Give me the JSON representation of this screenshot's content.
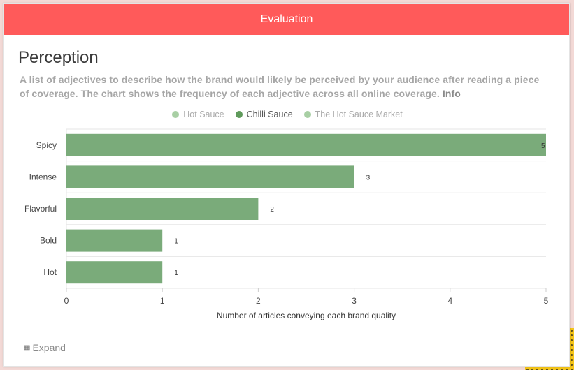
{
  "header": {
    "title": "Evaluation"
  },
  "section": {
    "title": "Perception",
    "description": "A list of adjectives to describe how the brand would likely be perceived by your audience after reading a piece of coverage. The chart shows the frequency of each adjective across all online coverage.",
    "info_link": "Info"
  },
  "legend": [
    {
      "label": "Hot Sauce",
      "color": "#a8cfa4",
      "text_color": "#aaaaaa"
    },
    {
      "label": "Chilli Sauce",
      "color": "#5f9a5b",
      "text_color": "#555555"
    },
    {
      "label": "The Hot Sauce Market",
      "color": "#a8cfa4",
      "text_color": "#aaaaaa"
    }
  ],
  "chart_data": {
    "type": "bar",
    "orientation": "horizontal",
    "categories": [
      "Spicy",
      "Intense",
      "Flavorful",
      "Bold",
      "Hot"
    ],
    "series": [
      {
        "name": "Chilli Sauce",
        "values": [
          5,
          3,
          2,
          1,
          1
        ],
        "color": "#7aab7a"
      }
    ],
    "xlabel": "Number of articles conveying each brand quality",
    "ylabel": "",
    "xlim": [
      0,
      5
    ],
    "xticks": [
      0,
      1,
      2,
      3,
      4,
      5
    ],
    "grid": true,
    "legend_position": "top-center"
  },
  "footer": {
    "expand_label": "Expand",
    "expand_icon": "expand-icon"
  }
}
